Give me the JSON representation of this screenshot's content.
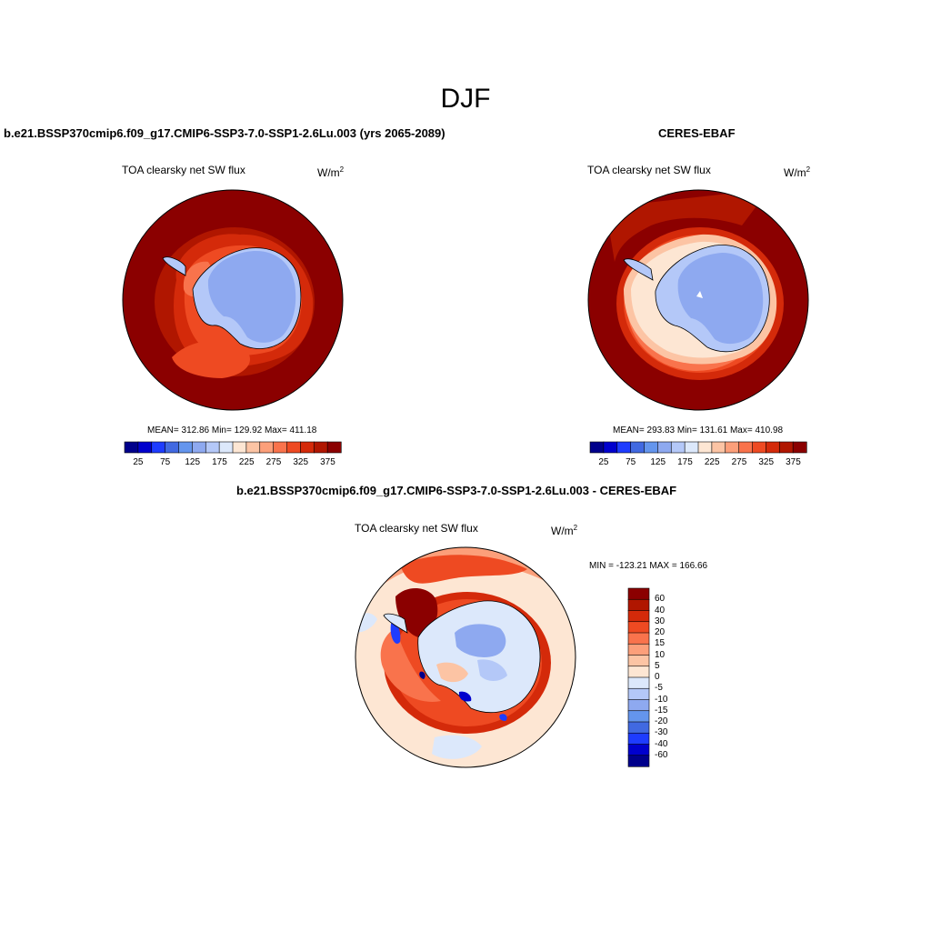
{
  "season": "DJF",
  "colors": {
    "seq": [
      "#00008b",
      "#0000cd",
      "#1e3cff",
      "#4169e1",
      "#6495ed",
      "#8ea9f0",
      "#b4c8f8",
      "#dce8fb",
      "#fde6d3",
      "#fcc4a4",
      "#fc9f7a",
      "#f9734c",
      "#ee4a22",
      "#d42a0a",
      "#b01600",
      "#8b0000"
    ],
    "diff": [
      "#00008b",
      "#0000cd",
      "#1e3cff",
      "#4169e1",
      "#6495ed",
      "#8ea9f0",
      "#b4c8f8",
      "#dce8fb",
      "#fde6d3",
      "#fcc4a4",
      "#fc9f7a",
      "#f9734c",
      "#ee4a22",
      "#d42a0a",
      "#b01600",
      "#8b0000"
    ]
  },
  "panels": [
    {
      "title": "b.e21.BSSP370cmip6.f09_g17.CMIP6-SSP3-7.0-SSP1-2.6Lu.003 (yrs 2065-2089)",
      "variable": "TOA clearsky net SW flux",
      "unit": "W/m",
      "unit_exp": "2",
      "stats": "MEAN= 312.86  Min= 129.92  Max= 411.18",
      "colorbar_ticks": [
        "25",
        "75",
        "125",
        "175",
        "225",
        "275",
        "325",
        "375"
      ]
    },
    {
      "title": "CERES-EBAF",
      "variable": "TOA clearsky net SW flux",
      "unit": "W/m",
      "unit_exp": "2",
      "stats": "MEAN= 293.83  Min= 131.61  Max= 410.98",
      "colorbar_ticks": [
        "25",
        "75",
        "125",
        "175",
        "225",
        "275",
        "325",
        "375"
      ]
    }
  ],
  "diff_panel": {
    "title": "b.e21.BSSP370cmip6.f09_g17.CMIP6-SSP3-7.0-SSP1-2.6Lu.003 - CERES-EBAF",
    "variable": "TOA clearsky net SW flux",
    "unit": "W/m",
    "unit_exp": "2",
    "minmax": "MIN = -123.21 MAX = 166.66",
    "colorbar_ticks": [
      "60",
      "40",
      "30",
      "20",
      "15",
      "10",
      "5",
      "0",
      "-5",
      "-10",
      "-15",
      "-20",
      "-30",
      "-40",
      "-60"
    ]
  }
}
